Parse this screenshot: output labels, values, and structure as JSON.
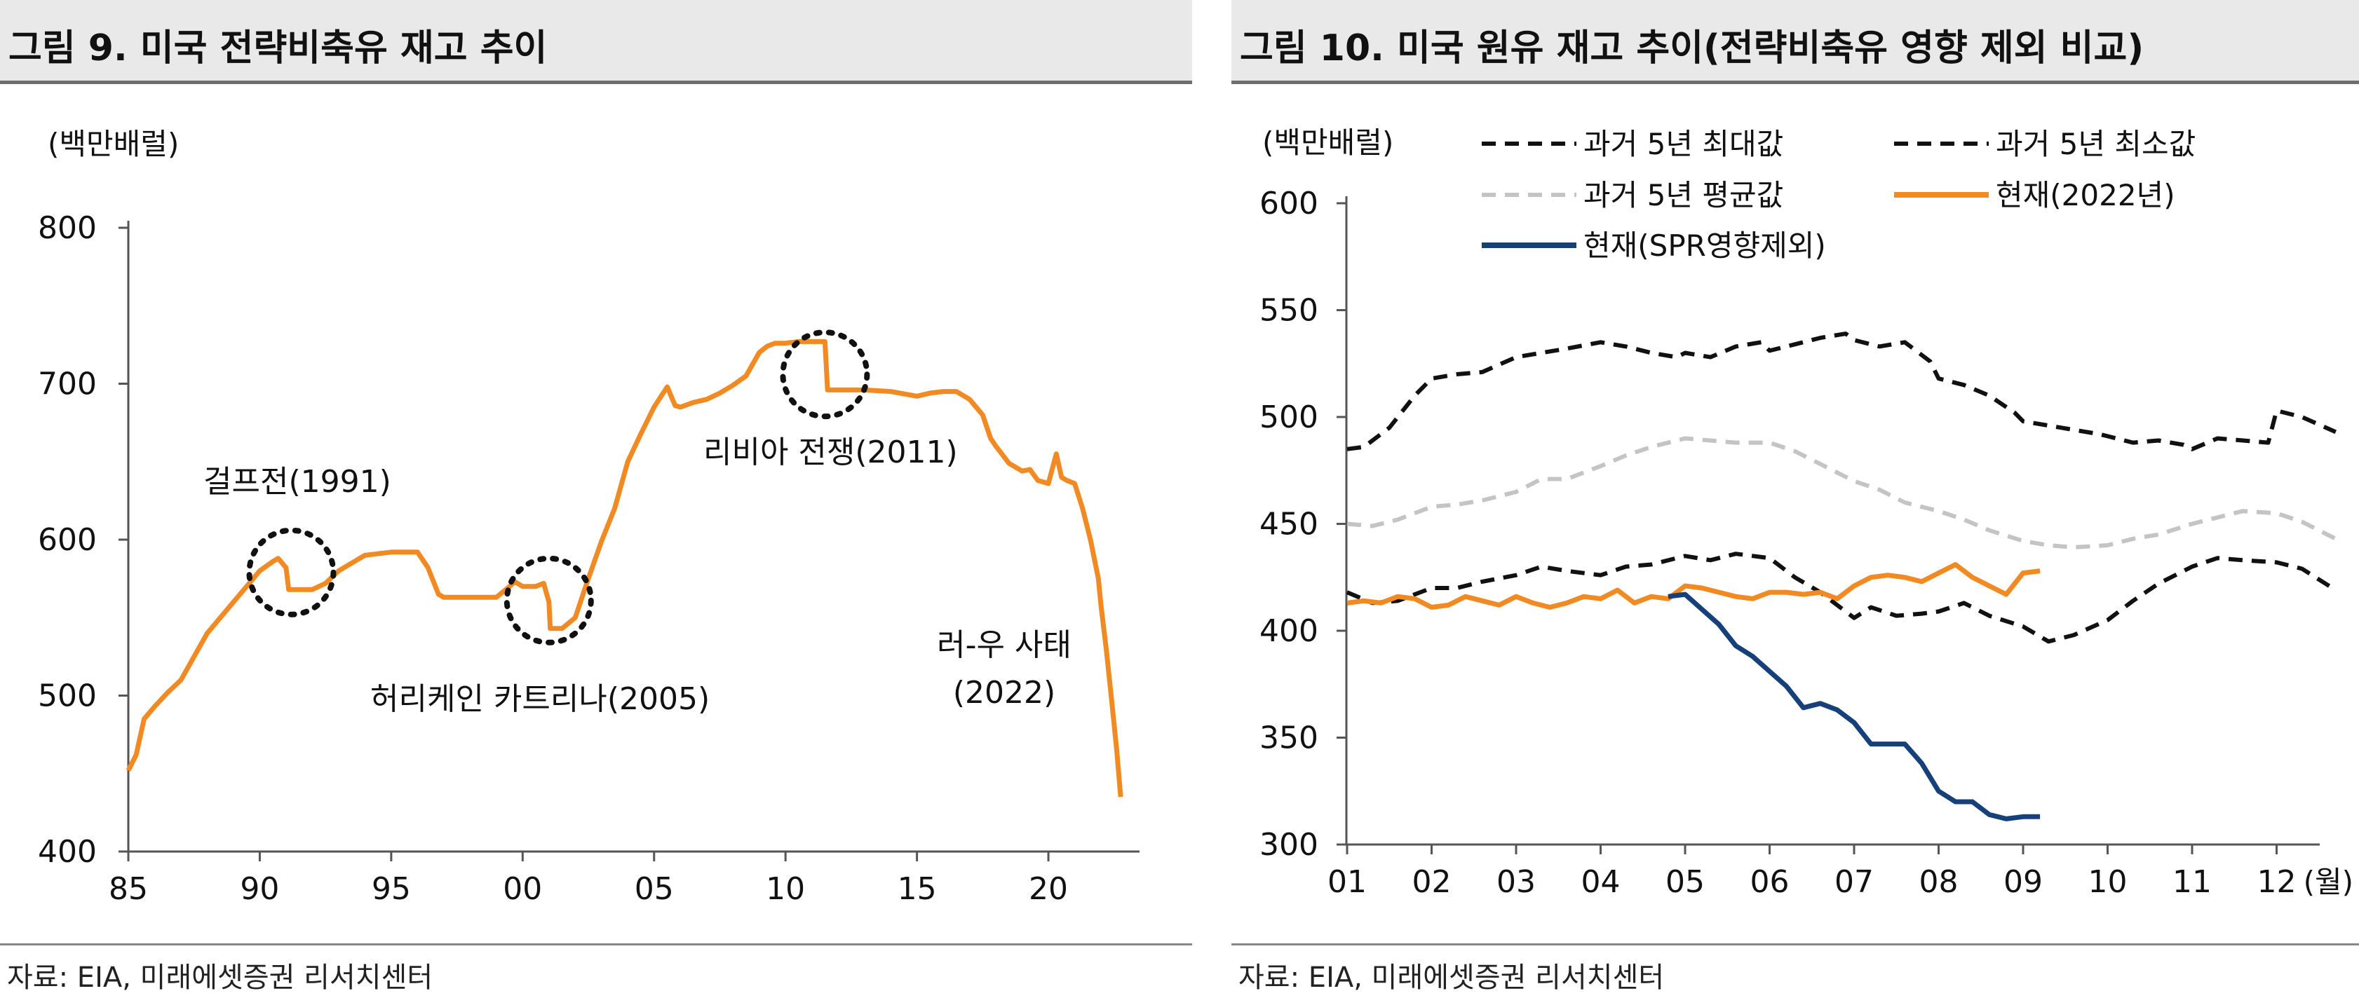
{
  "left": {
    "title": "그림 9. 미국 전략비축유 재고 추이",
    "source": "자료: EIA, 미래에셋증권 리서치센터",
    "unit": "(백만배럴)",
    "annotations": [
      "걸프전(1991)",
      "허리케인 카트리나(2005)",
      "리비아 전쟁(2011)",
      "러-우 사태",
      "(2022)"
    ]
  },
  "right": {
    "title": "그림 10. 미국 원유 재고 추이(전략비축유 영향 제외 비교)",
    "source": "자료: EIA, 미래에셋증권 리서치센터",
    "unit": "(백만배럴)",
    "x_unit": "(월)"
  },
  "colors": {
    "orange": "#f28a23",
    "navy": "#15407a",
    "black": "#111111",
    "gray": "#c4c4c4",
    "circle": "#111111"
  },
  "chart_data": [
    {
      "type": "line",
      "ylim": [
        400,
        800
      ],
      "xlim": [
        1985,
        2022.8
      ],
      "yticks": [
        400,
        500,
        600,
        700,
        800
      ],
      "xticks": [
        1985,
        1990,
        1995,
        2000,
        2005,
        2010,
        2015,
        2020
      ],
      "xticklabels": [
        "85",
        "90",
        "95",
        "00",
        "05",
        "10",
        "15",
        "20"
      ],
      "series": [
        {
          "color": "orange",
          "x": [
            1985,
            1985.3,
            1985.6,
            1986,
            1986.5,
            1987,
            1987.5,
            1988,
            1988.5,
            1989,
            1989.5,
            1990,
            1990.5,
            1990.7,
            1991.0,
            1991.1,
            1991.3,
            1992,
            1992.5,
            1993,
            1993.5,
            1994,
            1995,
            1996,
            1996.4,
            1996.8,
            1997,
            1998,
            1999,
            1999.5,
            1999.7,
            2000,
            2000.5,
            2000.8,
            2001,
            2001.05,
            2001.5,
            2002,
            2002.5,
            2003,
            2003.5,
            2004,
            2004.5,
            2005,
            2005.5,
            2005.8,
            2006,
            2006.5,
            2007,
            2007.5,
            2008,
            2008.5,
            2009,
            2009.3,
            2009.6,
            2010,
            2010.5,
            2011,
            2011.5,
            2011.6,
            2012,
            2013,
            2014,
            2015,
            2015.5,
            2016,
            2016.5,
            2017,
            2017.5,
            2017.8,
            2018,
            2018.5,
            2019,
            2019.3,
            2019.6,
            2020,
            2020.3,
            2020.5,
            2020.7,
            2021,
            2021.3,
            2021.6,
            2021.9,
            2022,
            2022.2,
            2022.4,
            2022.6,
            2022.75
          ],
          "y": [
            452,
            462,
            485,
            493,
            502,
            510,
            525,
            540,
            550,
            560,
            570,
            580,
            586,
            588,
            582,
            568,
            568,
            568,
            572,
            580,
            585,
            590,
            592,
            592,
            582,
            565,
            563,
            563,
            563,
            570,
            573,
            570,
            570,
            572,
            560,
            543,
            543,
            550,
            575,
            599,
            620,
            650,
            668,
            685,
            698,
            686,
            685,
            688,
            690,
            694,
            699,
            705,
            720,
            724,
            726,
            726,
            727,
            727,
            727,
            696,
            696,
            696,
            695,
            692,
            694,
            695,
            695,
            690,
            680,
            665,
            660,
            649,
            644,
            645,
            638,
            636,
            655,
            640,
            638,
            636,
            620,
            600,
            575,
            558,
            530,
            498,
            465,
            435
          ]
        }
      ]
    },
    {
      "type": "line",
      "ylim": [
        300,
        600
      ],
      "yticks": [
        300,
        350,
        400,
        450,
        500,
        550,
        600
      ],
      "categories": [
        "01",
        "02",
        "03",
        "04",
        "05",
        "06",
        "07",
        "08",
        "09",
        "10",
        "11",
        "12"
      ],
      "series": [
        {
          "name": "과거 5년 최대값",
          "color": "black",
          "dash": "dash",
          "x": [
            1,
            1.2,
            1.5,
            1.8,
            2,
            2.3,
            2.6,
            3,
            3.3,
            3.6,
            4,
            4.3,
            4.6,
            4.9,
            5,
            5.3,
            5.6,
            5.9,
            6,
            6.3,
            6.6,
            6.9,
            7,
            7.3,
            7.6,
            7.9,
            8,
            8.3,
            8.6,
            8.9,
            9,
            9.3,
            9.6,
            9.9,
            10,
            10.3,
            10.6,
            10.9,
            11,
            11.3,
            11.6,
            11.9,
            12,
            12.3,
            12.7
          ],
          "y": [
            485,
            486,
            495,
            510,
            518,
            520,
            521,
            528,
            530,
            532,
            535,
            533,
            530,
            528,
            530,
            528,
            533,
            535,
            531,
            534,
            537,
            539,
            536,
            533,
            535,
            526,
            518,
            515,
            510,
            502,
            498,
            496,
            494,
            492,
            491,
            488,
            489,
            487,
            485,
            490,
            489,
            488,
            503,
            500,
            493
          ]
        },
        {
          "name": "과거 5년 최소값",
          "color": "black",
          "dash": "dash",
          "x": [
            1,
            1.3,
            1.6,
            2,
            2.3,
            2.6,
            3,
            3.3,
            3.6,
            4,
            4.3,
            4.6,
            5,
            5.3,
            5.6,
            6,
            6.3,
            6.6,
            7,
            7.2,
            7.5,
            7.8,
            8,
            8.3,
            8.6,
            9,
            9.3,
            9.6,
            10,
            10.3,
            10.6,
            11,
            11.3,
            11.6,
            12,
            12.3,
            12.7
          ],
          "y": [
            418,
            413,
            414,
            420,
            420,
            423,
            426,
            430,
            428,
            426,
            430,
            431,
            435,
            433,
            436,
            434,
            425,
            418,
            406,
            411,
            407,
            408,
            409,
            413,
            407,
            402,
            395,
            398,
            405,
            414,
            422,
            430,
            434,
            433,
            432,
            429,
            419
          ]
        },
        {
          "name": "과거 5년 평균값",
          "color": "gray",
          "dash": "dash",
          "x": [
            1,
            1.3,
            1.6,
            2,
            2.3,
            2.6,
            3,
            3.3,
            3.6,
            4,
            4.3,
            4.6,
            5,
            5.3,
            5.6,
            6,
            6.3,
            6.6,
            7,
            7.3,
            7.6,
            8,
            8.3,
            8.6,
            9,
            9.3,
            9.6,
            10,
            10.3,
            10.6,
            11,
            11.3,
            11.6,
            12,
            12.3,
            12.7
          ],
          "y": [
            450,
            449,
            452,
            458,
            459,
            461,
            465,
            471,
            471,
            477,
            482,
            486,
            490,
            489,
            488,
            488,
            484,
            478,
            470,
            466,
            460,
            456,
            452,
            447,
            442,
            440,
            439,
            440,
            443,
            445,
            450,
            453,
            456,
            455,
            451,
            443
          ]
        },
        {
          "name": "현재(2022년)",
          "color": "orange",
          "dash": "solid",
          "x": [
            1,
            1.2,
            1.4,
            1.6,
            1.8,
            2,
            2.2,
            2.4,
            2.6,
            2.8,
            3,
            3.2,
            3.4,
            3.6,
            3.8,
            4,
            4.2,
            4.4,
            4.6,
            4.8,
            5,
            5.2,
            5.4,
            5.6,
            5.8,
            6,
            6.2,
            6.4,
            6.6,
            6.8,
            7,
            7.2,
            7.4,
            7.6,
            7.8,
            8,
            8.2,
            8.4,
            8.6,
            8.8,
            9,
            9.2
          ],
          "y": [
            413,
            414,
            413,
            416,
            415,
            411,
            412,
            416,
            414,
            412,
            416,
            413,
            411,
            413,
            416,
            415,
            419,
            413,
            416,
            415,
            421,
            420,
            418,
            416,
            415,
            418,
            418,
            417,
            418,
            415,
            421,
            425,
            426,
            425,
            423,
            427,
            431,
            425,
            421,
            417,
            427,
            428
          ]
        },
        {
          "name": "현재(SPR영향제외)",
          "color": "navy",
          "dash": "solid",
          "x": [
            4.8,
            5,
            5.2,
            5.4,
            5.6,
            5.8,
            6,
            6.2,
            6.4,
            6.6,
            6.8,
            7,
            7.2,
            7.4,
            7.6,
            7.8,
            8,
            8.2,
            8.4,
            8.6,
            8.8,
            9,
            9.2
          ],
          "y": [
            416,
            417,
            410,
            403,
            393,
            388,
            381,
            374,
            364,
            366,
            363,
            357,
            347,
            347,
            347,
            338,
            325,
            320,
            320,
            314,
            312,
            313,
            313
          ]
        }
      ]
    }
  ]
}
